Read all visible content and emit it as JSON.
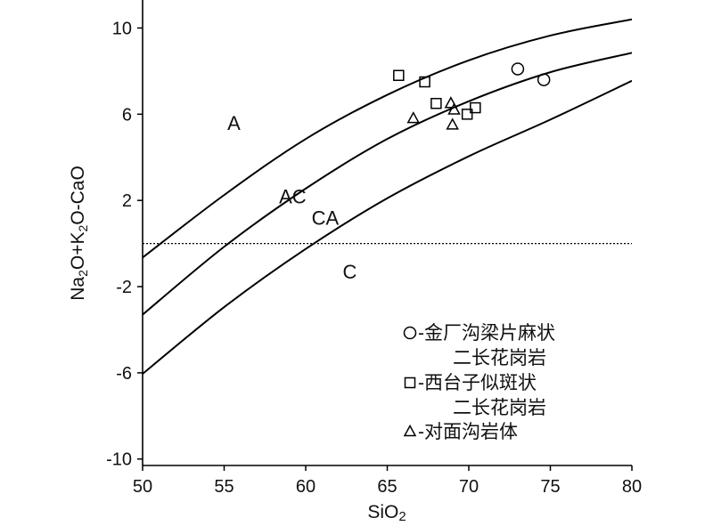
{
  "chart_data": {
    "type": "scatter",
    "xlabel": "SiO2",
    "ylabel": "Na2O+K2O-CaO",
    "xlim": [
      50,
      80
    ],
    "ylim": [
      -10.3,
      11.3
    ],
    "x_ticks": [
      "50",
      "55",
      "60",
      "65",
      "70",
      "75",
      "80"
    ],
    "y_ticks": [
      "10",
      "6",
      "2",
      "-2",
      "-6",
      "-10"
    ],
    "x_tick_values": [
      50,
      55,
      60,
      65,
      70,
      75,
      80
    ],
    "y_tick_values": [
      10,
      6,
      2,
      -2,
      -6,
      -10
    ],
    "reference_line_y": 0,
    "boundaries": [
      {
        "x": [
          50,
          55,
          60,
          65,
          70,
          75,
          80
        ],
        "y": [
          -0.65,
          2.25,
          4.85,
          6.9,
          8.5,
          9.65,
          10.4
        ]
      },
      {
        "x": [
          50,
          55,
          60,
          65,
          70,
          75,
          80
        ],
        "y": [
          -3.3,
          -0.15,
          2.55,
          4.85,
          6.6,
          7.95,
          8.85
        ]
      },
      {
        "x": [
          50,
          55,
          60,
          65,
          70,
          75,
          80
        ],
        "y": [
          -6.05,
          -2.95,
          -0.25,
          2.1,
          4.05,
          5.75,
          7.55
        ]
      }
    ],
    "field_labels": [
      {
        "text": "A",
        "x": 55.6,
        "y": 5.6
      },
      {
        "text": "AC",
        "x": 59.2,
        "y": 2.2
      },
      {
        "text": "CA",
        "x": 61.2,
        "y": 1.2
      },
      {
        "text": "C",
        "x": 62.7,
        "y": -1.3
      }
    ],
    "series": [
      {
        "name": "金厂沟梁片麻状二长花岗岩",
        "marker": "circle",
        "x": [
          73.0,
          74.6
        ],
        "y": [
          8.1,
          7.6
        ]
      },
      {
        "name": "西台子似斑状二长花岗岩",
        "marker": "square",
        "x": [
          65.7,
          67.3,
          68.0,
          69.9,
          70.4
        ],
        "y": [
          7.8,
          7.5,
          6.5,
          6.0,
          6.3
        ]
      },
      {
        "name": "对面沟岩体",
        "marker": "triangle",
        "x": [
          66.6,
          68.9,
          69.1,
          69.0
        ],
        "y": [
          5.8,
          6.5,
          6.2,
          5.5
        ]
      }
    ],
    "legend": {
      "placement": "bottom-right",
      "entries": [
        {
          "marker": "circle",
          "line1": "-金厂沟梁片麻状",
          "line2": "二长花岗岩"
        },
        {
          "marker": "square",
          "line1": "-西台子似斑状",
          "line2": "二长花岗岩"
        },
        {
          "marker": "triangle",
          "line1": "-对面沟岩体"
        }
      ]
    }
  }
}
